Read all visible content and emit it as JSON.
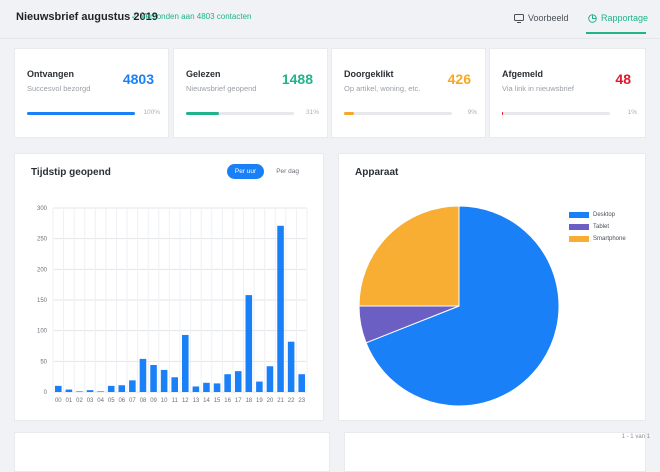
{
  "header": {
    "title": "Nieuwsbrief augustus 2019",
    "subtitle": "Verzonden aan 4803 contacten",
    "preview_label": "Voorbeeld",
    "report_label": "Rapportage"
  },
  "stats": [
    {
      "name": "Ontvangen",
      "desc": "Succesvol bezorgd",
      "value": "4803",
      "pct": "100%",
      "fraction": 1.0,
      "color": "#1a80f7"
    },
    {
      "name": "Gelezen",
      "desc": "Nieuwsbrief geopend",
      "value": "1488",
      "pct": "31%",
      "fraction": 0.31,
      "color": "#21b38c"
    },
    {
      "name": "Doorgeklikt",
      "desc": "Op artikel, woning, etc.",
      "value": "426",
      "pct": "9%",
      "fraction": 0.09,
      "color": "#f7a823"
    },
    {
      "name": "Afgemeld",
      "desc": "Via link in nieuwsbrief",
      "value": "48",
      "pct": "1%",
      "fraction": 0.01,
      "color": "#e0172b"
    }
  ],
  "opened_chart": {
    "title": "Tijdstip geopend",
    "buttons": [
      "Per uur",
      "Per dag"
    ]
  },
  "device_chart": {
    "title": "Apparaat"
  },
  "footer": {
    "pagination": "1 - 1 van 1"
  },
  "chart_data": [
    {
      "type": "bar",
      "categories": [
        "00",
        "01",
        "02",
        "03",
        "04",
        "05",
        "06",
        "07",
        "08",
        "09",
        "10",
        "11",
        "12",
        "13",
        "14",
        "15",
        "16",
        "17",
        "18",
        "19",
        "20",
        "21",
        "22",
        "23"
      ],
      "values": [
        10,
        4,
        1,
        3,
        1,
        10,
        11,
        19,
        54,
        44,
        36,
        24,
        93,
        9,
        15,
        14,
        29,
        34,
        158,
        17,
        42,
        271,
        82,
        29
      ],
      "ylim": [
        0,
        300
      ],
      "yticks": [
        0,
        50,
        100,
        150,
        200,
        250,
        300
      ],
      "grid": true,
      "color": "#1a80f7"
    },
    {
      "type": "pie",
      "labels": [
        "Desktop",
        "Tablet",
        "Smartphone"
      ],
      "values": [
        69,
        6,
        25
      ],
      "colors": [
        "#1a80f7",
        "#6c5fc4",
        "#f7ae33"
      ],
      "legend": "top-right"
    }
  ]
}
